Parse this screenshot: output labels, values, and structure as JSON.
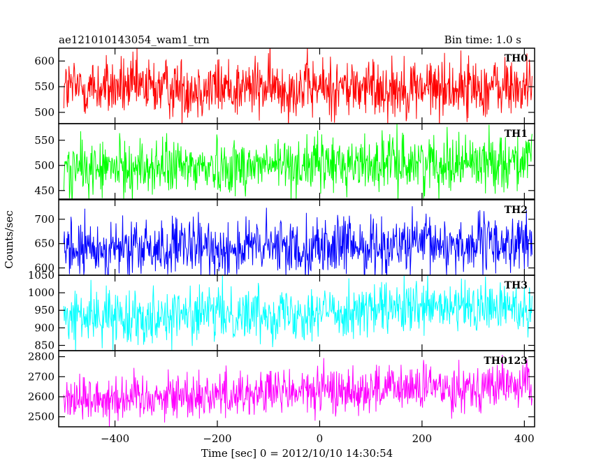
{
  "header": {
    "title": "ae121010143054_wam1_trn",
    "bin_time": "Bin time: 1.0 s"
  },
  "chart_data": {
    "type": "line",
    "xlabel": "Time [sec] 0 = 2012/10/10 14:30:54",
    "ylabel": "Counts/sec",
    "xlim": [
      -510,
      420
    ],
    "x_range": [
      -500,
      415
    ],
    "x_step": 1,
    "xticks": [
      -400,
      -200,
      0,
      200,
      400
    ],
    "xtick_labels": [
      "−400",
      "−200",
      "0",
      "200",
      "400"
    ],
    "panels": [
      {
        "name": "TH0",
        "color": "#ff0000",
        "ylim": [
          478,
          625
        ],
        "mean": 548,
        "spread": 30,
        "trend": 0,
        "yticks": [
          500,
          550,
          600
        ],
        "ytick_labels": [
          "500",
          "550",
          "600"
        ]
      },
      {
        "name": "TH1",
        "color": "#00ff00",
        "ylim": [
          433,
          583
        ],
        "mean": 492,
        "spread": 28,
        "trend": 18,
        "yticks": [
          450,
          500,
          550
        ],
        "ytick_labels": [
          "450",
          "500",
          "550"
        ]
      },
      {
        "name": "TH2",
        "color": "#0000ff",
        "ylim": [
          585,
          740
        ],
        "mean": 636,
        "spread": 30,
        "trend": 14,
        "yticks": [
          600,
          650,
          700
        ],
        "ytick_labels": [
          "600",
          "650",
          "700"
        ]
      },
      {
        "name": "TH3",
        "color": "#00ffff",
        "ylim": [
          835,
          1050
        ],
        "mean": 930,
        "spread": 38,
        "trend": 30,
        "yticks": [
          850,
          900,
          950,
          1000,
          1050
        ],
        "ytick_labels": [
          "850",
          "900",
          "950",
          "1000",
          "1050"
        ]
      },
      {
        "name": "TH0123",
        "color": "#ff00ff",
        "ylim": [
          2450,
          2830
        ],
        "mean": 2590,
        "spread": 60,
        "trend": 70,
        "yticks": [
          2500,
          2600,
          2700,
          2800
        ],
        "ytick_labels": [
          "2500",
          "2600",
          "2700",
          "2800"
        ]
      }
    ]
  }
}
